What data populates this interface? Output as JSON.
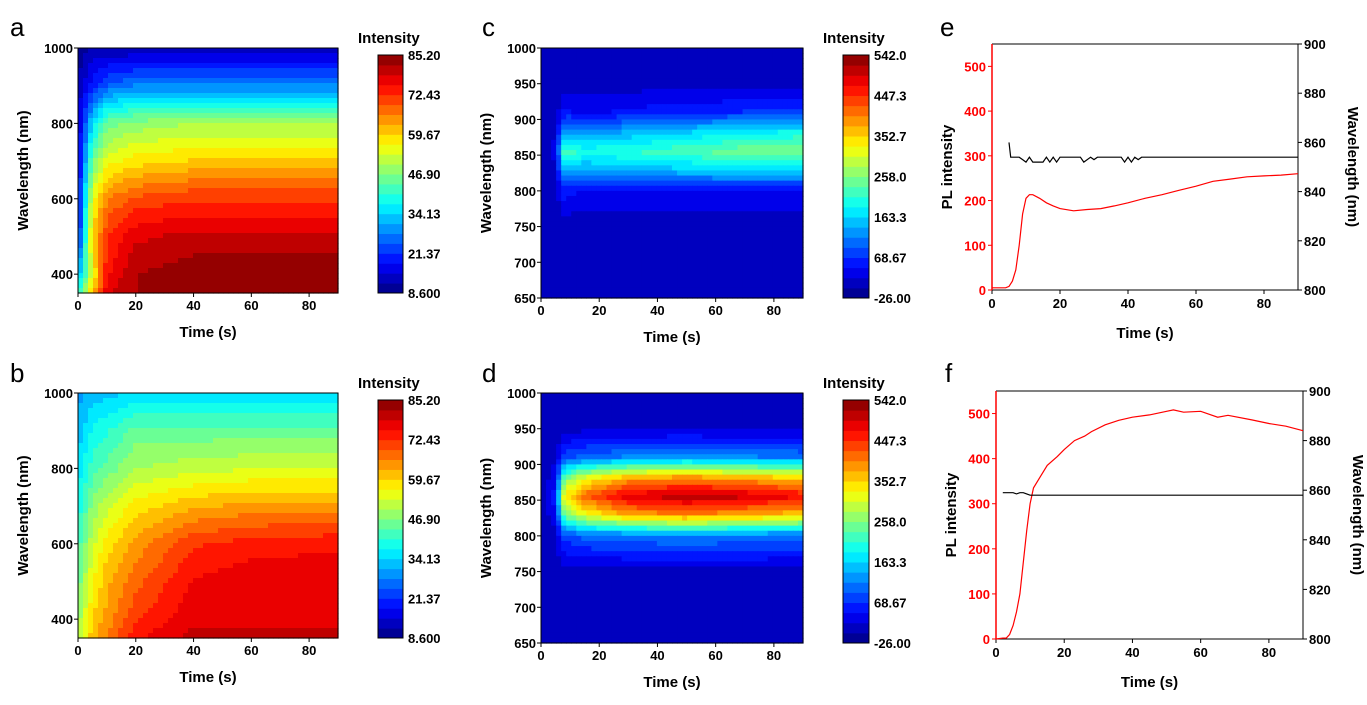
{
  "panel_labels": [
    "a",
    "b",
    "c",
    "d",
    "e",
    "f"
  ],
  "chart_data": [
    {
      "panel": "a",
      "type": "heatmap",
      "xlabel": "Time (s)",
      "ylabel": "Wavelength (nm)",
      "xlim": [
        0,
        90
      ],
      "ylim": [
        350,
        1000
      ],
      "x_ticks": [
        "0",
        "20",
        "40",
        "60",
        "80"
      ],
      "x_tick_values": [
        0,
        20,
        40,
        60,
        80
      ],
      "y_ticks": [
        "400",
        "600",
        "800",
        "1000"
      ],
      "y_tick_values": [
        400,
        600,
        800,
        1000
      ],
      "colorbar": {
        "title": "Intensity",
        "range": [
          8.6,
          85.2
        ],
        "ticks": [
          "85.20",
          "72.43",
          "59.67",
          "46.90",
          "34.13",
          "21.37",
          "8.600"
        ]
      },
      "x": [
        0,
        5,
        10,
        20,
        40,
        60,
        90
      ],
      "y": [
        350,
        400,
        500,
        600,
        700,
        800,
        900,
        1000
      ],
      "z": [
        [
          40,
          60,
          78,
          82,
          84,
          84,
          85
        ],
        [
          30,
          55,
          75,
          82,
          84,
          84,
          85
        ],
        [
          18,
          60,
          72,
          78,
          80,
          80,
          80
        ],
        [
          16,
          55,
          66,
          70,
          72,
          72,
          72
        ],
        [
          15,
          45,
          55,
          58,
          60,
          60,
          60
        ],
        [
          14,
          35,
          45,
          48,
          50,
          50,
          50
        ],
        [
          12,
          20,
          25,
          28,
          28,
          28,
          28
        ],
        [
          10,
          12,
          12,
          12,
          12,
          12,
          12
        ]
      ]
    },
    {
      "panel": "b",
      "type": "heatmap",
      "xlabel": "Time (s)",
      "ylabel": "Wavelength (nm)",
      "xlim": [
        0,
        90
      ],
      "ylim": [
        350,
        1000
      ],
      "x_ticks": [
        "0",
        "20",
        "40",
        "60",
        "80"
      ],
      "x_tick_values": [
        0,
        20,
        40,
        60,
        80
      ],
      "y_ticks": [
        "400",
        "600",
        "800",
        "1000"
      ],
      "y_tick_values": [
        400,
        600,
        800,
        1000
      ],
      "colorbar": {
        "title": "Intensity",
        "range": [
          8.6,
          85.2
        ],
        "ticks": [
          "85.20",
          "72.43",
          "59.67",
          "46.90",
          "34.13",
          "21.37",
          "8.600"
        ]
      },
      "x": [
        0,
        5,
        10,
        20,
        40,
        60,
        90
      ],
      "y": [
        350,
        400,
        500,
        600,
        700,
        800,
        900,
        1000
      ],
      "z": [
        [
          50,
          62,
          66,
          75,
          80,
          80,
          80
        ],
        [
          48,
          60,
          64,
          72,
          78,
          78,
          78
        ],
        [
          45,
          56,
          62,
          68,
          76,
          78,
          78
        ],
        [
          42,
          52,
          58,
          64,
          72,
          74,
          75
        ],
        [
          38,
          48,
          52,
          58,
          62,
          64,
          64
        ],
        [
          35,
          42,
          45,
          50,
          52,
          53,
          53
        ],
        [
          32,
          38,
          40,
          45,
          45,
          45,
          45
        ],
        [
          30,
          32,
          33,
          35,
          35,
          35,
          35
        ]
      ]
    },
    {
      "panel": "c",
      "type": "heatmap",
      "xlabel": "Time (s)",
      "ylabel": "Wavelength (nm)",
      "xlim": [
        0,
        90
      ],
      "ylim": [
        650,
        1000
      ],
      "x_ticks": [
        "0",
        "20",
        "40",
        "60",
        "80"
      ],
      "x_tick_values": [
        0,
        20,
        40,
        60,
        80
      ],
      "y_ticks": [
        "650",
        "700",
        "750",
        "800",
        "850",
        "900",
        "950",
        "1000"
      ],
      "y_tick_values": [
        650,
        700,
        750,
        800,
        850,
        900,
        950,
        1000
      ],
      "colorbar": {
        "title": "Intensity",
        "range": [
          -26,
          542
        ],
        "ticks": [
          "542.0",
          "447.3",
          "352.7",
          "258.0",
          "163.3",
          "68.67",
          "-26.00"
        ]
      },
      "x": [
        0,
        5,
        8,
        15,
        30,
        50,
        70,
        90
      ],
      "y": [
        650,
        750,
        800,
        830,
        855,
        880,
        910,
        950,
        1000
      ],
      "z": [
        [
          0,
          0,
          0,
          0,
          0,
          0,
          0,
          0
        ],
        [
          0,
          2,
          5,
          5,
          5,
          5,
          5,
          5
        ],
        [
          0,
          10,
          60,
          40,
          40,
          45,
          45,
          45
        ],
        [
          0,
          20,
          160,
          140,
          150,
          160,
          170,
          170
        ],
        [
          0,
          30,
          230,
          200,
          210,
          230,
          250,
          260
        ],
        [
          0,
          20,
          150,
          130,
          150,
          170,
          190,
          200
        ],
        [
          0,
          10,
          50,
          40,
          50,
          60,
          70,
          75
        ],
        [
          0,
          5,
          10,
          10,
          10,
          10,
          10,
          10
        ],
        [
          0,
          0,
          0,
          0,
          0,
          0,
          0,
          0
        ]
      ]
    },
    {
      "panel": "d",
      "type": "heatmap",
      "xlabel": "Time (s)",
      "ylabel": "Wavelength (nm)",
      "xlim": [
        0,
        90
      ],
      "ylim": [
        650,
        1000
      ],
      "x_ticks": [
        "0",
        "20",
        "40",
        "60",
        "80"
      ],
      "x_tick_values": [
        0,
        20,
        40,
        60,
        80
      ],
      "y_ticks": [
        "650",
        "700",
        "750",
        "800",
        "850",
        "900",
        "950",
        "1000"
      ],
      "y_tick_values": [
        650,
        700,
        750,
        800,
        850,
        900,
        950,
        1000
      ],
      "colorbar": {
        "title": "Intensity",
        "range": [
          -26,
          542
        ],
        "ticks": [
          "542.0",
          "447.3",
          "352.7",
          "258.0",
          "163.3",
          "68.67",
          "-26.00"
        ]
      },
      "x": [
        0,
        5,
        8,
        15,
        30,
        50,
        70,
        90
      ],
      "y": [
        650,
        750,
        800,
        830,
        855,
        880,
        910,
        950,
        1000
      ],
      "z": [
        [
          0,
          0,
          0,
          0,
          0,
          0,
          0,
          0
        ],
        [
          0,
          3,
          10,
          10,
          10,
          10,
          10,
          10
        ],
        [
          0,
          15,
          80,
          100,
          110,
          120,
          110,
          105
        ],
        [
          0,
          40,
          250,
          320,
          380,
          400,
          380,
          360
        ],
        [
          0,
          60,
          330,
          420,
          490,
          510,
          500,
          470
        ],
        [
          0,
          40,
          250,
          320,
          380,
          400,
          380,
          360
        ],
        [
          0,
          15,
          80,
          100,
          120,
          130,
          120,
          110
        ],
        [
          0,
          3,
          10,
          15,
          15,
          15,
          15,
          15
        ],
        [
          0,
          0,
          0,
          0,
          0,
          0,
          0,
          0
        ]
      ]
    },
    {
      "panel": "e",
      "type": "line",
      "xlabel": "Time (s)",
      "ylabel": "PL intensity",
      "y2label": "Wavelength (nm)",
      "xlim": [
        0,
        90
      ],
      "ylim": [
        0,
        550
      ],
      "y2lim": [
        800,
        900
      ],
      "x_ticks": [
        "0",
        "20",
        "40",
        "60",
        "80"
      ],
      "x_tick_values": [
        0,
        20,
        40,
        60,
        80
      ],
      "y_ticks": [
        "0",
        "100",
        "200",
        "300",
        "400",
        "500"
      ],
      "y_tick_values": [
        0,
        100,
        200,
        300,
        400,
        500
      ],
      "y2_ticks": [
        "800",
        "820",
        "840",
        "860",
        "880",
        "900"
      ],
      "y2_tick_values": [
        800,
        820,
        840,
        860,
        880,
        900
      ],
      "colors": {
        "pl": "#ff0000",
        "wavelength": "#000000"
      },
      "series": [
        {
          "axis": "left",
          "x": [
            0,
            3,
            4,
            5,
            6,
            7,
            8,
            9,
            10,
            11,
            12,
            14,
            16,
            18,
            20,
            24,
            28,
            32,
            36,
            40,
            45,
            50,
            55,
            60,
            65,
            70,
            75,
            80,
            85,
            90
          ],
          "y": [
            5,
            5,
            5,
            8,
            20,
            45,
            100,
            170,
            205,
            213,
            213,
            205,
            195,
            188,
            182,
            177,
            180,
            182,
            188,
            195,
            205,
            213,
            223,
            232,
            243,
            248,
            253,
            255,
            257,
            260
          ]
        },
        {
          "axis": "right",
          "x": [
            5,
            5.5,
            8,
            9,
            10,
            11,
            12,
            15,
            16,
            17,
            18,
            19,
            20,
            26,
            27,
            29,
            30,
            31,
            38,
            39,
            40,
            41,
            42,
            43,
            44,
            90
          ],
          "y": [
            860,
            854,
            854,
            853,
            852,
            854,
            852,
            852,
            854,
            852,
            854,
            852,
            854,
            854,
            852,
            854,
            853,
            854,
            854,
            852,
            854,
            852,
            854,
            853,
            854,
            854
          ]
        }
      ]
    },
    {
      "panel": "f",
      "type": "line",
      "xlabel": "Time (s)",
      "ylabel": "PL intensity",
      "y2label": "Wavelength (nm)",
      "xlim": [
        0,
        90
      ],
      "ylim": [
        0,
        550
      ],
      "y2lim": [
        800,
        900
      ],
      "x_ticks": [
        "0",
        "20",
        "40",
        "60",
        "80"
      ],
      "x_tick_values": [
        0,
        20,
        40,
        60,
        80
      ],
      "y_ticks": [
        "0",
        "100",
        "200",
        "300",
        "400",
        "500"
      ],
      "y_tick_values": [
        0,
        100,
        200,
        300,
        400,
        500
      ],
      "y2_ticks": [
        "800",
        "820",
        "840",
        "860",
        "880",
        "900"
      ],
      "y2_tick_values": [
        800,
        820,
        840,
        860,
        880,
        900
      ],
      "colors": {
        "pl": "#ff0000",
        "wavelength": "#000000"
      },
      "series": [
        {
          "axis": "left",
          "x": [
            0,
            2,
            3,
            4,
            5,
            6,
            7,
            8,
            9,
            10,
            11,
            13,
            15,
            18,
            20,
            23,
            26,
            28,
            32,
            36,
            40,
            45,
            50,
            52,
            55,
            60,
            65,
            68,
            75,
            80,
            85,
            90
          ],
          "y": [
            0,
            2,
            2,
            10,
            30,
            60,
            100,
            170,
            240,
            300,
            335,
            360,
            385,
            405,
            420,
            440,
            450,
            460,
            475,
            485,
            492,
            497,
            505,
            508,
            503,
            505,
            492,
            496,
            486,
            478,
            472,
            462
          ]
        },
        {
          "axis": "right",
          "x": [
            2,
            5,
            6,
            7,
            8,
            9,
            10,
            90
          ],
          "y": [
            859,
            859,
            858.5,
            859,
            859,
            858.5,
            858,
            858
          ]
        }
      ]
    }
  ]
}
